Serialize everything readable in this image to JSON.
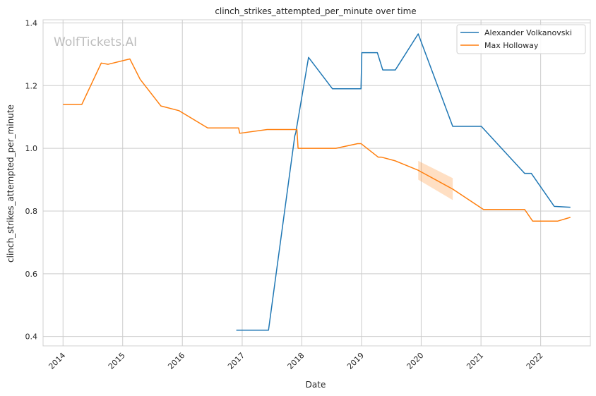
{
  "chart_data": {
    "type": "line",
    "title": "clinch_strikes_attempted_per_minute over time",
    "xlabel": "Date",
    "ylabel": "clinch_strikes_attempted_per_minute",
    "watermark": "WolfTickets.AI",
    "xlim": [
      "2013-09-01",
      "2022-11-01"
    ],
    "ylim": [
      0.37,
      1.41
    ],
    "x_ticks": [
      "2014",
      "2015",
      "2016",
      "2017",
      "2018",
      "2019",
      "2020",
      "2021",
      "2022"
    ],
    "y_ticks": [
      "0.4",
      "0.6",
      "0.8",
      "1.0",
      "1.2",
      "1.4"
    ],
    "grid": true,
    "legend_position": "top-right",
    "series": [
      {
        "name": "Alexander Volkanovski",
        "color": "#1f77b4",
        "points": [
          [
            "2016-11-26",
            0.42
          ],
          [
            "2017-06-11",
            0.42
          ],
          [
            "2017-11-19",
            1.04
          ],
          [
            "2017-11-25",
            1.05
          ],
          [
            "2018-02-11",
            1.29
          ],
          [
            "2018-07-07",
            1.19
          ],
          [
            "2018-12-29",
            1.19
          ],
          [
            "2019-01-03",
            1.305
          ],
          [
            "2019-04-08",
            1.305
          ],
          [
            "2019-05-11",
            1.25
          ],
          [
            "2019-07-27",
            1.25
          ],
          [
            "2019-12-14",
            1.365
          ],
          [
            "2020-07-12",
            1.07
          ],
          [
            "2021-01-03",
            1.07
          ],
          [
            "2021-09-25",
            0.92
          ],
          [
            "2021-11-05",
            0.92
          ],
          [
            "2022-03-25",
            0.815
          ],
          [
            "2022-07-02",
            0.812
          ]
        ]
      },
      {
        "name": "Max Holloway",
        "color": "#ff7f0e",
        "points": [
          [
            "2014-01-01",
            1.14
          ],
          [
            "2014-04-26",
            1.14
          ],
          [
            "2014-08-23",
            1.272
          ],
          [
            "2014-10-04",
            1.268
          ],
          [
            "2015-02-14",
            1.285
          ],
          [
            "2015-04-18",
            1.22
          ],
          [
            "2015-08-23",
            1.135
          ],
          [
            "2015-12-12",
            1.12
          ],
          [
            "2016-06-04",
            1.065
          ],
          [
            "2016-12-10",
            1.065
          ],
          [
            "2016-12-17",
            1.048
          ],
          [
            "2017-06-03",
            1.06
          ],
          [
            "2017-12-02",
            1.06
          ],
          [
            "2017-12-09",
            1.0
          ],
          [
            "2018-07-28",
            1.0
          ],
          [
            "2018-12-08",
            1.015
          ],
          [
            "2018-12-29",
            1.015
          ],
          [
            "2019-04-13",
            0.972
          ],
          [
            "2019-05-02",
            0.972
          ],
          [
            "2019-07-27",
            0.96
          ],
          [
            "2019-12-14",
            0.93
          ],
          [
            "2020-07-12",
            0.87
          ],
          [
            "2021-01-16",
            0.805
          ],
          [
            "2021-09-25",
            0.805
          ],
          [
            "2021-11-13",
            0.768
          ],
          [
            "2022-04-16",
            0.768
          ],
          [
            "2022-07-02",
            0.78
          ]
        ],
        "confidence_band": [
          [
            "2019-12-14",
            0.96,
            0.9
          ],
          [
            "2020-07-12",
            0.905,
            0.835
          ]
        ]
      }
    ]
  }
}
